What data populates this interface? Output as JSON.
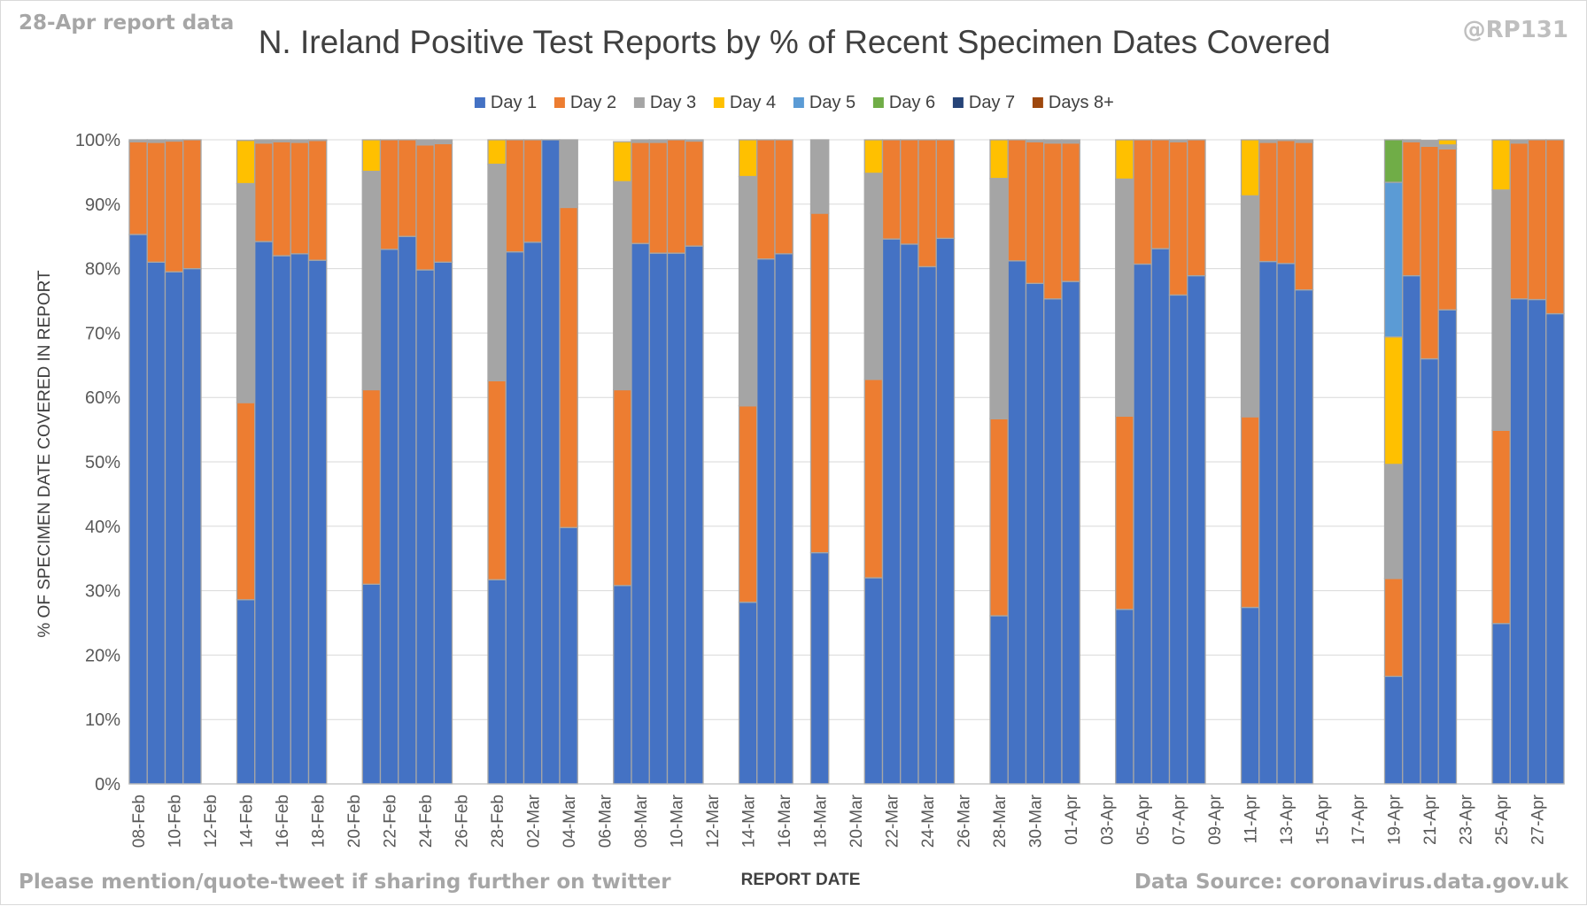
{
  "header": {
    "report_note": "28-Apr report data",
    "handle": "@RP131",
    "title": "N. Ireland Positive Test Reports by % of Recent Specimen Dates Covered"
  },
  "footer": {
    "left": "Please mention/quote-tweet if sharing further on twitter",
    "right": "Data Source: coronavirus.data.gov.uk"
  },
  "chart_data": {
    "type": "bar",
    "stacked": true,
    "title": "N. Ireland Positive Test Reports by % of Recent Specimen Dates Covered",
    "xlabel": "REPORT DATE",
    "ylabel": "% OF SPECIMEN DATE COVERED IN REPORT",
    "ylim": [
      0,
      100
    ],
    "y_ticks": [
      "0%",
      "10%",
      "20%",
      "30%",
      "40%",
      "50%",
      "60%",
      "70%",
      "80%",
      "90%",
      "100%"
    ],
    "grid": true,
    "legend_position": "top",
    "categories": [
      "08-Feb",
      "09-Feb",
      "10-Feb",
      "11-Feb",
      "12-Feb",
      "13-Feb",
      "14-Feb",
      "15-Feb",
      "16-Feb",
      "17-Feb",
      "18-Feb",
      "19-Feb",
      "20-Feb",
      "21-Feb",
      "22-Feb",
      "23-Feb",
      "24-Feb",
      "25-Feb",
      "26-Feb",
      "27-Feb",
      "28-Feb",
      "01-Mar",
      "02-Mar",
      "03-Mar",
      "04-Mar",
      "05-Mar",
      "06-Mar",
      "07-Mar",
      "08-Mar",
      "09-Mar",
      "10-Mar",
      "11-Mar",
      "12-Mar",
      "13-Mar",
      "14-Mar",
      "15-Mar",
      "16-Mar",
      "17-Mar",
      "18-Mar",
      "19-Mar",
      "20-Mar",
      "21-Mar",
      "22-Mar",
      "23-Mar",
      "24-Mar",
      "25-Mar",
      "26-Mar",
      "27-Mar",
      "28-Mar",
      "29-Mar",
      "30-Mar",
      "31-Mar",
      "01-Apr",
      "02-Apr",
      "03-Apr",
      "04-Apr",
      "05-Apr",
      "06-Apr",
      "07-Apr",
      "08-Apr",
      "09-Apr",
      "10-Apr",
      "11-Apr",
      "12-Apr",
      "13-Apr",
      "14-Apr",
      "15-Apr",
      "16-Apr",
      "17-Apr",
      "18-Apr",
      "19-Apr",
      "20-Apr",
      "21-Apr",
      "22-Apr",
      "23-Apr",
      "24-Apr",
      "25-Apr",
      "26-Apr",
      "27-Apr",
      "28-Apr"
    ],
    "x_tick_labels": [
      "08-Feb",
      "10-Feb",
      "12-Feb",
      "14-Feb",
      "16-Feb",
      "18-Feb",
      "20-Feb",
      "22-Feb",
      "24-Feb",
      "26-Feb",
      "28-Feb",
      "02-Mar",
      "04-Mar",
      "06-Mar",
      "08-Mar",
      "10-Mar",
      "12-Mar",
      "14-Mar",
      "16-Mar",
      "18-Mar",
      "20-Mar",
      "22-Mar",
      "24-Mar",
      "26-Mar",
      "28-Mar",
      "30-Mar",
      "01-Apr",
      "03-Apr",
      "05-Apr",
      "07-Apr",
      "09-Apr",
      "11-Apr",
      "13-Apr",
      "15-Apr",
      "17-Apr",
      "19-Apr",
      "21-Apr",
      "23-Apr",
      "25-Apr",
      "27-Apr"
    ],
    "series": [
      {
        "name": "Day 1",
        "color": "#4472c4",
        "values": [
          85.3,
          81,
          79.5,
          80,
          null,
          null,
          28.6,
          84.2,
          82,
          82.3,
          81.3,
          null,
          null,
          31,
          83,
          85,
          79.8,
          81,
          null,
          null,
          31.7,
          82.6,
          84.1,
          100,
          39.8,
          null,
          null,
          30.8,
          83.9,
          82.4,
          82.4,
          83.5,
          null,
          null,
          28.2,
          81.5,
          82.3,
          null,
          35.9,
          null,
          null,
          32,
          84.6,
          83.8,
          80.3,
          84.7,
          null,
          null,
          26.1,
          81.2,
          77.7,
          75.3,
          78,
          null,
          null,
          27.1,
          80.7,
          83.1,
          75.9,
          78.9,
          null,
          null,
          27.4,
          81.1,
          80.8,
          76.7,
          null,
          null,
          null,
          null,
          16.7,
          78.9,
          66,
          73.6,
          null,
          null,
          24.9,
          75.3,
          75.2,
          73
        ]
      },
      {
        "name": "Day 2",
        "color": "#ed7d31",
        "values": [
          14.4,
          18.6,
          20.3,
          20,
          null,
          null,
          30.6,
          15.3,
          17.7,
          17.3,
          18.6,
          null,
          null,
          30.2,
          17,
          15,
          19.4,
          18.4,
          null,
          null,
          30.9,
          17.4,
          15.9,
          0,
          49.7,
          null,
          null,
          30.4,
          15.7,
          17.2,
          17.6,
          16.3,
          null,
          null,
          30.5,
          18.5,
          17.7,
          null,
          52.7,
          null,
          null,
          30.8,
          15.4,
          16.2,
          19.7,
          15.3,
          null,
          null,
          30.6,
          18.8,
          22,
          24.2,
          21.5,
          null,
          null,
          30,
          19.3,
          16.9,
          23.8,
          21.1,
          null,
          null,
          29.6,
          18.5,
          19.1,
          22.9,
          null,
          null,
          null,
          null,
          15.2,
          20.8,
          33,
          25,
          null,
          null,
          30,
          24.2,
          24.8,
          27
        ]
      },
      {
        "name": "Day 3",
        "color": "#a5a5a5",
        "values": [
          0.3,
          0.4,
          0.2,
          0,
          null,
          null,
          34,
          0.5,
          0.3,
          0.4,
          0.1,
          null,
          null,
          33.9,
          0,
          0,
          0.8,
          0.6,
          null,
          null,
          33.6,
          0,
          0,
          0,
          10.5,
          null,
          null,
          32.3,
          0.4,
          0.4,
          0,
          0.2,
          null,
          null,
          35.6,
          0,
          0,
          null,
          11.4,
          null,
          null,
          32,
          0,
          0,
          0,
          0,
          null,
          null,
          37.3,
          0,
          0.3,
          0.5,
          0.5,
          null,
          null,
          36.8,
          0,
          0,
          0.3,
          0,
          null,
          null,
          34.3,
          0.4,
          0.1,
          0.4,
          null,
          null,
          null,
          null,
          17.7,
          0.3,
          0.9,
          0.6,
          null,
          null,
          37.3,
          0.5,
          0,
          0
        ]
      },
      {
        "name": "Day 4",
        "color": "#ffc000",
        "values": [
          0,
          0,
          0,
          0,
          null,
          null,
          6.7,
          0,
          0,
          0,
          0,
          null,
          null,
          4.9,
          0,
          0,
          0,
          0,
          null,
          null,
          3.8,
          0,
          0,
          0,
          0,
          null,
          null,
          6.2,
          0,
          0,
          0,
          0,
          null,
          null,
          5.7,
          0,
          0,
          null,
          0,
          null,
          null,
          5.2,
          0,
          0,
          0,
          0,
          null,
          null,
          6,
          0,
          0,
          0,
          0,
          null,
          null,
          6.1,
          0,
          0,
          0,
          0,
          null,
          null,
          8.7,
          0,
          0,
          0,
          null,
          null,
          null,
          null,
          19.8,
          0,
          0,
          0.8,
          null,
          null,
          7.8,
          0,
          0,
          0
        ]
      },
      {
        "name": "Day 5",
        "color": "#5b9bd5",
        "values": [
          0,
          0,
          0,
          0,
          null,
          null,
          0,
          0,
          0,
          0,
          0,
          null,
          null,
          0,
          0,
          0,
          0,
          0,
          null,
          null,
          0,
          0,
          0,
          0,
          0,
          null,
          null,
          0,
          0,
          0,
          0,
          0,
          null,
          null,
          0,
          0,
          0,
          null,
          0,
          null,
          null,
          0,
          0,
          0,
          0,
          0,
          null,
          null,
          0,
          0,
          0,
          0,
          0,
          null,
          null,
          0,
          0,
          0,
          0,
          0,
          null,
          null,
          0,
          0,
          0,
          0,
          null,
          null,
          null,
          null,
          24,
          0,
          0,
          0,
          null,
          null,
          0,
          0,
          0,
          0
        ]
      },
      {
        "name": "Day 6",
        "color": "#70ad47",
        "values": [
          0,
          0,
          0,
          0,
          null,
          null,
          0,
          0,
          0,
          0,
          0,
          null,
          null,
          0,
          0,
          0,
          0,
          0,
          null,
          null,
          0,
          0,
          0,
          0,
          0,
          null,
          null,
          0,
          0,
          0,
          0,
          0,
          null,
          null,
          0,
          0,
          0,
          null,
          0,
          null,
          null,
          0,
          0,
          0,
          0,
          0,
          null,
          null,
          0,
          0,
          0,
          0,
          0,
          null,
          null,
          0,
          0,
          0,
          0,
          0,
          null,
          null,
          0,
          0,
          0,
          0,
          null,
          null,
          null,
          null,
          6.6,
          0,
          0,
          0,
          null,
          null,
          0,
          0,
          0,
          0
        ]
      },
      {
        "name": "Day 7",
        "color": "#264478",
        "values": [
          0,
          0,
          0,
          0,
          null,
          null,
          0,
          0,
          0,
          0,
          0,
          null,
          null,
          0,
          0,
          0,
          0,
          0,
          null,
          null,
          0,
          0,
          0,
          0,
          0,
          null,
          null,
          0,
          0,
          0,
          0,
          0,
          null,
          null,
          0,
          0,
          0,
          null,
          0,
          null,
          null,
          0,
          0,
          0,
          0,
          0,
          null,
          null,
          0,
          0,
          0,
          0,
          0,
          null,
          null,
          0,
          0,
          0,
          0,
          0,
          null,
          null,
          0,
          0,
          0,
          0,
          null,
          null,
          null,
          null,
          0,
          0,
          0,
          0,
          null,
          null,
          0,
          0,
          0,
          0
        ]
      },
      {
        "name": "Days 8+",
        "color": "#9e480e",
        "values": [
          0,
          0,
          0,
          0,
          null,
          null,
          0,
          0,
          0,
          0,
          0,
          null,
          null,
          0,
          0,
          0,
          0,
          0,
          null,
          null,
          0,
          0,
          0,
          0,
          0,
          null,
          null,
          0,
          0,
          0,
          0,
          0,
          null,
          null,
          0,
          0,
          0,
          null,
          0,
          null,
          null,
          0,
          0,
          0,
          0,
          0,
          null,
          null,
          0,
          0,
          0,
          0,
          0,
          null,
          null,
          0,
          0,
          0,
          0,
          0,
          null,
          null,
          0,
          0,
          0,
          0,
          null,
          null,
          null,
          null,
          0,
          0,
          0,
          0,
          null,
          null,
          0,
          0,
          0,
          0
        ]
      }
    ]
  }
}
